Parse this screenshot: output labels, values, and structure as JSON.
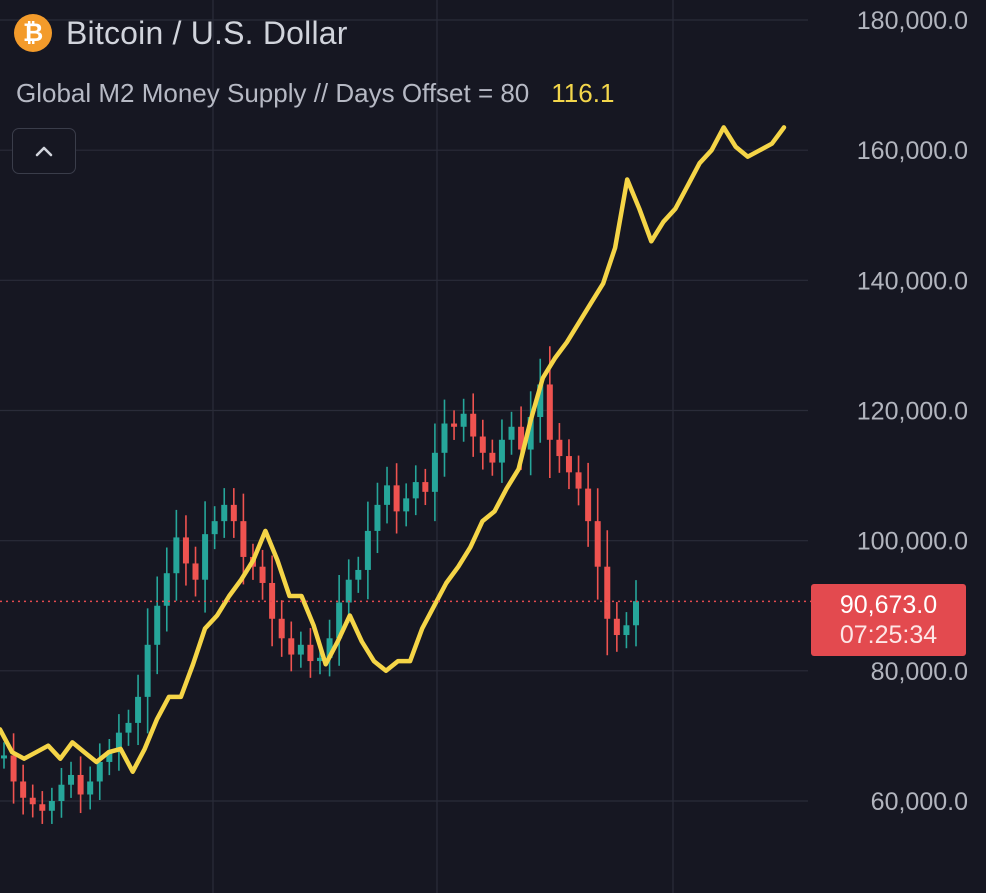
{
  "header": {
    "logo_symbol": "₿",
    "title": "Bitcoin / U.S. Dollar",
    "indicator_label": "Global M2 Money Supply // Days Offset = 80",
    "indicator_value": "116.1"
  },
  "toolbar": {
    "collapse_icon": "chevron-up-icon"
  },
  "price_label": {
    "price": "90,673.0",
    "countdown": "07:25:34"
  },
  "colors": {
    "background": "#161722",
    "grid": "#2a2c39",
    "axis_text": "#b2b5be",
    "candle_up": "#26a69a",
    "candle_down": "#ef5350",
    "m2_line": "#f5d547",
    "price_line": "#e34a4f",
    "btc_orange": "#f39b2b"
  },
  "chart_data": {
    "type": "line",
    "title": "Bitcoin / U.S. Dollar",
    "ylim": [
      52000,
      184000
    ],
    "y_ticks": [
      60000,
      80000,
      100000,
      120000,
      140000,
      160000,
      180000
    ],
    "y_tick_labels": [
      "60,000.0",
      "80,000.0",
      "100,000.0",
      "120,000.0",
      "140,000.0",
      "160,000.0",
      "180,000.0"
    ],
    "grid": true,
    "current_price": 90673.0,
    "series": [
      {
        "name": "Bitcoin / U.S. Dollar",
        "style": "candlestick",
        "values": [
          67000,
          63000,
          60500,
          59500,
          58500,
          60000,
          62500,
          64000,
          61000,
          63000,
          66000,
          67500,
          70500,
          72000,
          76000,
          84000,
          90000,
          95000,
          100500,
          96500,
          94000,
          101000,
          103000,
          105500,
          103000,
          97500,
          96000,
          93500,
          88000,
          85000,
          82500,
          84000,
          81500,
          82000,
          85000,
          90500,
          94000,
          95500,
          101500,
          105500,
          108500,
          104500,
          106500,
          109000,
          107500,
          113500,
          118000,
          117500,
          119500,
          116000,
          113500,
          112000,
          115500,
          117500,
          114000,
          119000,
          124000,
          115500,
          113000,
          110500,
          108000,
          103000,
          96000,
          88000,
          85500,
          87000,
          90700
        ]
      },
      {
        "name": "Global M2 Money Supply // Days Offset = 80",
        "style": "line",
        "values": [
          71000,
          67500,
          66500,
          67500,
          68500,
          66500,
          69000,
          67500,
          66000,
          67500,
          68000,
          64500,
          68000,
          72500,
          76000,
          76000,
          81000,
          86500,
          88500,
          91500,
          94000,
          97000,
          101500,
          97000,
          91500,
          91500,
          87000,
          81000,
          84500,
          88500,
          84500,
          81500,
          80000,
          81500,
          81500,
          86500,
          90000,
          93500,
          96000,
          99000,
          103000,
          104500,
          108000,
          111000,
          118500,
          125000,
          128000,
          130500,
          133500,
          136500,
          139500,
          145000,
          155500,
          151000,
          146000,
          149000,
          151000,
          154500,
          158000,
          160000,
          163500,
          160500,
          159000,
          160000,
          161000,
          163500
        ]
      }
    ]
  }
}
